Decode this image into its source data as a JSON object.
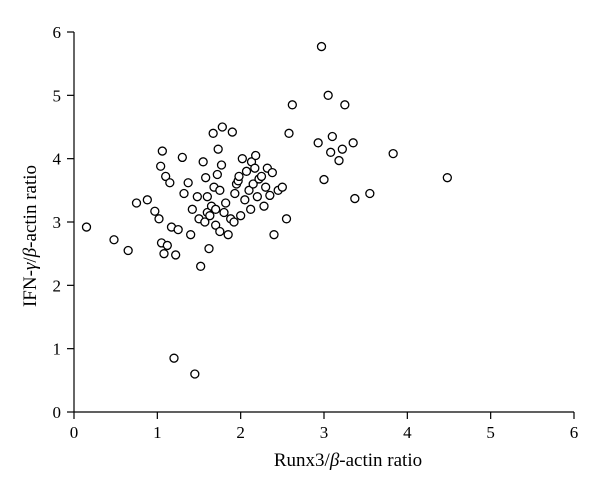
{
  "chart_data": {
    "type": "scatter",
    "title": "",
    "xlabel_parts": [
      "Runx3/",
      "β",
      "-actin ratio"
    ],
    "ylabel_parts": [
      "IFN-",
      "γ",
      "/",
      "β",
      "-actin ratio"
    ],
    "xlim": [
      0,
      6
    ],
    "ylim": [
      0,
      6
    ],
    "xticks": [
      "0",
      "1",
      "2",
      "3",
      "4",
      "5",
      "6"
    ],
    "yticks": [
      "0",
      "1",
      "2",
      "3",
      "4",
      "5",
      "6"
    ],
    "grid": false,
    "legend": "none",
    "series": [
      {
        "marker": "open-circle",
        "x": [
          0.15,
          0.48,
          0.65,
          0.75,
          0.88,
          0.97,
          1.02,
          1.04,
          1.05,
          1.06,
          1.08,
          1.1,
          1.12,
          1.15,
          1.17,
          1.2,
          1.22,
          1.25,
          1.3,
          1.32,
          1.37,
          1.4,
          1.42,
          1.45,
          1.48,
          1.5,
          1.52,
          1.55,
          1.57,
          1.58,
          1.6,
          1.6,
          1.62,
          1.63,
          1.65,
          1.67,
          1.68,
          1.7,
          1.7,
          1.72,
          1.73,
          1.75,
          1.75,
          1.77,
          1.78,
          1.8,
          1.82,
          1.85,
          1.88,
          1.9,
          1.92,
          1.93,
          1.95,
          1.97,
          1.98,
          2.0,
          2.02,
          2.05,
          2.07,
          2.1,
          2.12,
          2.13,
          2.15,
          2.17,
          2.18,
          2.2,
          2.22,
          2.25,
          2.28,
          2.3,
          2.32,
          2.35,
          2.38,
          2.4,
          2.45,
          2.5,
          2.55,
          2.58,
          2.62,
          2.93,
          2.97,
          3.0,
          3.05,
          3.08,
          3.1,
          3.18,
          3.22,
          3.25,
          3.35,
          3.37,
          3.55,
          3.83,
          4.48
        ],
        "y": [
          2.92,
          2.72,
          2.55,
          3.3,
          3.35,
          3.17,
          3.05,
          3.88,
          2.67,
          4.12,
          2.5,
          3.72,
          2.63,
          3.62,
          2.92,
          0.85,
          2.48,
          2.88,
          4.02,
          3.45,
          3.62,
          2.8,
          3.2,
          0.6,
          3.4,
          3.05,
          2.3,
          3.95,
          3.0,
          3.7,
          3.15,
          3.4,
          2.58,
          3.1,
          3.25,
          4.4,
          3.55,
          3.2,
          2.95,
          3.75,
          4.15,
          3.5,
          2.85,
          3.9,
          4.5,
          3.15,
          3.3,
          2.8,
          3.05,
          4.42,
          3.0,
          3.45,
          3.6,
          3.65,
          3.72,
          3.1,
          4.0,
          3.35,
          3.8,
          3.5,
          3.2,
          3.95,
          3.6,
          3.85,
          4.05,
          3.4,
          3.68,
          3.72,
          3.25,
          3.55,
          3.85,
          3.42,
          3.78,
          2.8,
          3.5,
          3.55,
          3.05,
          4.4,
          4.85,
          4.25,
          5.77,
          3.67,
          5.0,
          4.1,
          4.35,
          3.97,
          4.15,
          4.85,
          4.25,
          3.37,
          3.45,
          4.08,
          3.7
        ]
      }
    ]
  }
}
